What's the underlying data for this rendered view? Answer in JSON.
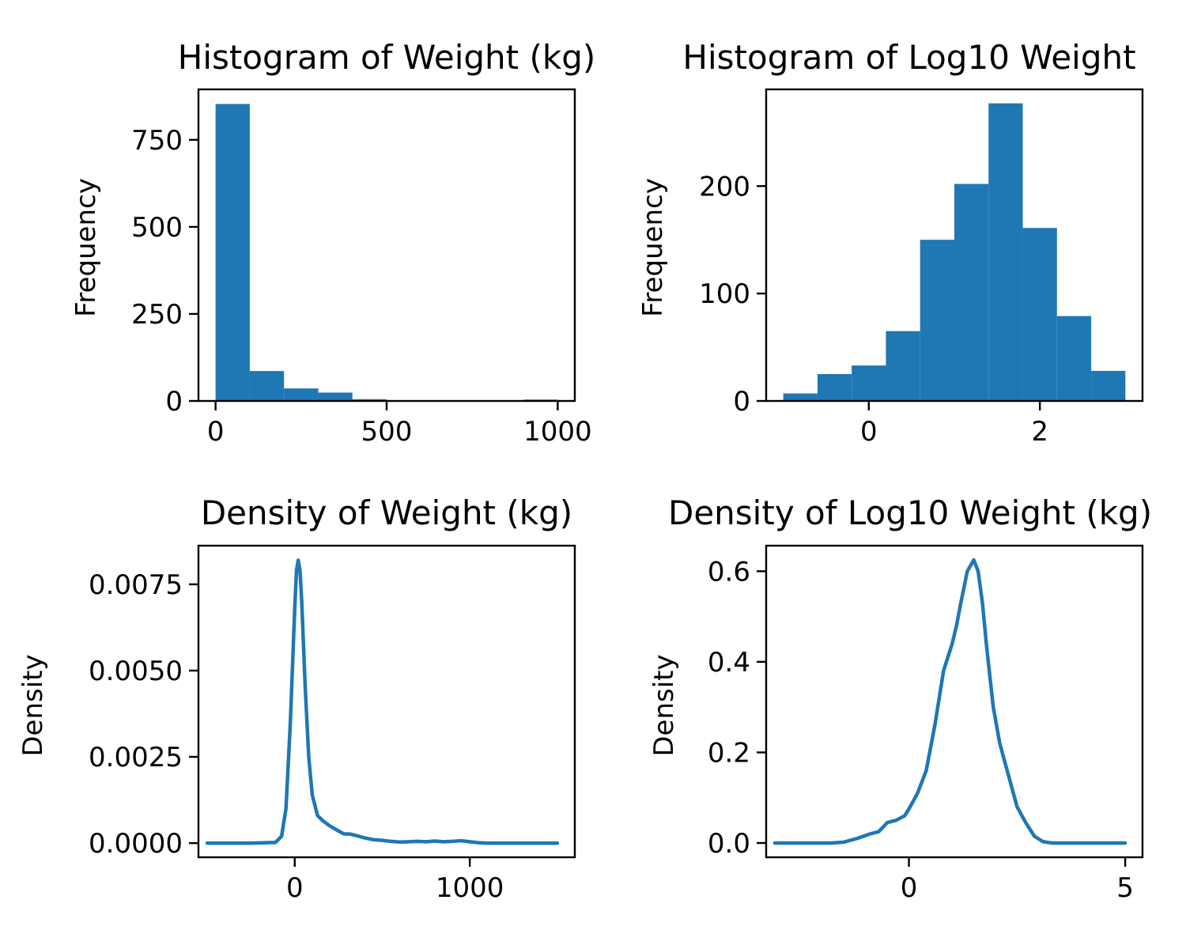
{
  "colors": {
    "series": "#1f77b4",
    "axes": "#000000",
    "background": "#ffffff"
  },
  "chart_data": [
    {
      "type": "bar",
      "subtype": "histogram",
      "title": "Histogram of Weight (kg)",
      "xlabel": "",
      "ylabel": "Frequency",
      "bin_edges": [
        0,
        100,
        200,
        300,
        400,
        500,
        600,
        700,
        800,
        900,
        1000
      ],
      "values": [
        853,
        86,
        36,
        24,
        5,
        0,
        0,
        0,
        0,
        4
      ],
      "xlim": [
        -50,
        1050
      ],
      "ylim": [
        0,
        895
      ],
      "xticks": [
        0,
        500,
        1000
      ],
      "xtick_labels": [
        "0",
        "500",
        "1000"
      ],
      "yticks": [
        0,
        250,
        500,
        750
      ],
      "ytick_labels": [
        "0",
        "250",
        "500",
        "750"
      ],
      "grid": false,
      "legend": "none"
    },
    {
      "type": "bar",
      "subtype": "histogram",
      "title": "Histogram of Log10 Weight",
      "xlabel": "",
      "ylabel": "Frequency",
      "bin_edges": [
        -1.0,
        -0.6,
        -0.2,
        0.2,
        0.6,
        1.0,
        1.4,
        1.8,
        2.2,
        2.6,
        3.0
      ],
      "values": [
        7,
        25,
        33,
        65,
        150,
        202,
        277,
        161,
        79,
        28
      ],
      "xlim": [
        -1.2,
        3.2
      ],
      "ylim": [
        0,
        290
      ],
      "xticks": [
        0,
        2
      ],
      "xtick_labels": [
        "0",
        "2"
      ],
      "yticks": [
        0,
        100,
        200
      ],
      "ytick_labels": [
        "0",
        "100",
        "200"
      ],
      "grid": false,
      "legend": "none"
    },
    {
      "type": "line",
      "subtype": "density",
      "title": "Density of Weight (kg)",
      "xlabel": "",
      "ylabel": "Density",
      "x": [
        -500,
        -250,
        -110,
        -75,
        -50,
        -25,
        0,
        10,
        20,
        30,
        40,
        60,
        80,
        100,
        130,
        160,
        200,
        240,
        280,
        320,
        350,
        400,
        450,
        500,
        550,
        600,
        650,
        700,
        750,
        800,
        850,
        900,
        950,
        1000,
        1050,
        1100,
        1200,
        1300,
        1400,
        1500
      ],
      "y": [
        0,
        0,
        2e-05,
        0.0002,
        0.001,
        0.0035,
        0.0068,
        0.0079,
        0.0082,
        0.0079,
        0.007,
        0.0045,
        0.0025,
        0.0014,
        0.0008,
        0.00065,
        0.0005,
        0.00038,
        0.00027,
        0.00026,
        0.00022,
        0.00015,
        0.0001,
        8e-05,
        5e-05,
        3e-05,
        4e-05,
        5e-05,
        4e-05,
        6e-05,
        4e-05,
        5e-05,
        7e-05,
        4e-05,
        1e-05,
        0,
        0,
        0,
        0,
        0
      ],
      "xlim": [
        -550,
        1600
      ],
      "ylim": [
        -0.00041,
        0.00862
      ],
      "xticks": [
        0,
        1000
      ],
      "xtick_labels": [
        "0",
        "1000"
      ],
      "yticks": [
        0,
        0.0025,
        0.005,
        0.0075
      ],
      "ytick_labels": [
        "0.0000",
        "0.0025",
        "0.0050",
        "0.0075"
      ],
      "grid": false,
      "legend": "none"
    },
    {
      "type": "line",
      "subtype": "density",
      "title": "Density of Log10 Weight (kg)",
      "xlabel": "",
      "ylabel": "Density",
      "x": [
        -3.1,
        -2.5,
        -1.8,
        -1.5,
        -1.2,
        -0.9,
        -0.7,
        -0.5,
        -0.3,
        -0.1,
        0.0,
        0.2,
        0.4,
        0.6,
        0.8,
        1.0,
        1.1,
        1.2,
        1.35,
        1.5,
        1.6,
        1.7,
        1.8,
        1.95,
        2.1,
        2.3,
        2.5,
        2.7,
        2.9,
        3.1,
        3.3,
        3.6,
        4.0,
        4.5,
        5.0
      ],
      "y": [
        0,
        0,
        0,
        0.002,
        0.01,
        0.02,
        0.025,
        0.045,
        0.05,
        0.06,
        0.075,
        0.11,
        0.16,
        0.26,
        0.38,
        0.44,
        0.48,
        0.53,
        0.6,
        0.625,
        0.6,
        0.53,
        0.43,
        0.3,
        0.22,
        0.15,
        0.08,
        0.045,
        0.015,
        0.003,
        0,
        0,
        0,
        0,
        0
      ],
      "xlim": [
        -3.3,
        5.4
      ],
      "ylim": [
        -0.0315,
        0.6565
      ],
      "xticks": [
        0,
        5
      ],
      "xtick_labels": [
        "0",
        "5"
      ],
      "yticks": [
        0,
        0.2,
        0.4,
        0.6
      ],
      "ytick_labels": [
        "0.0",
        "0.2",
        "0.4",
        "0.6"
      ],
      "grid": false,
      "legend": "none"
    }
  ]
}
